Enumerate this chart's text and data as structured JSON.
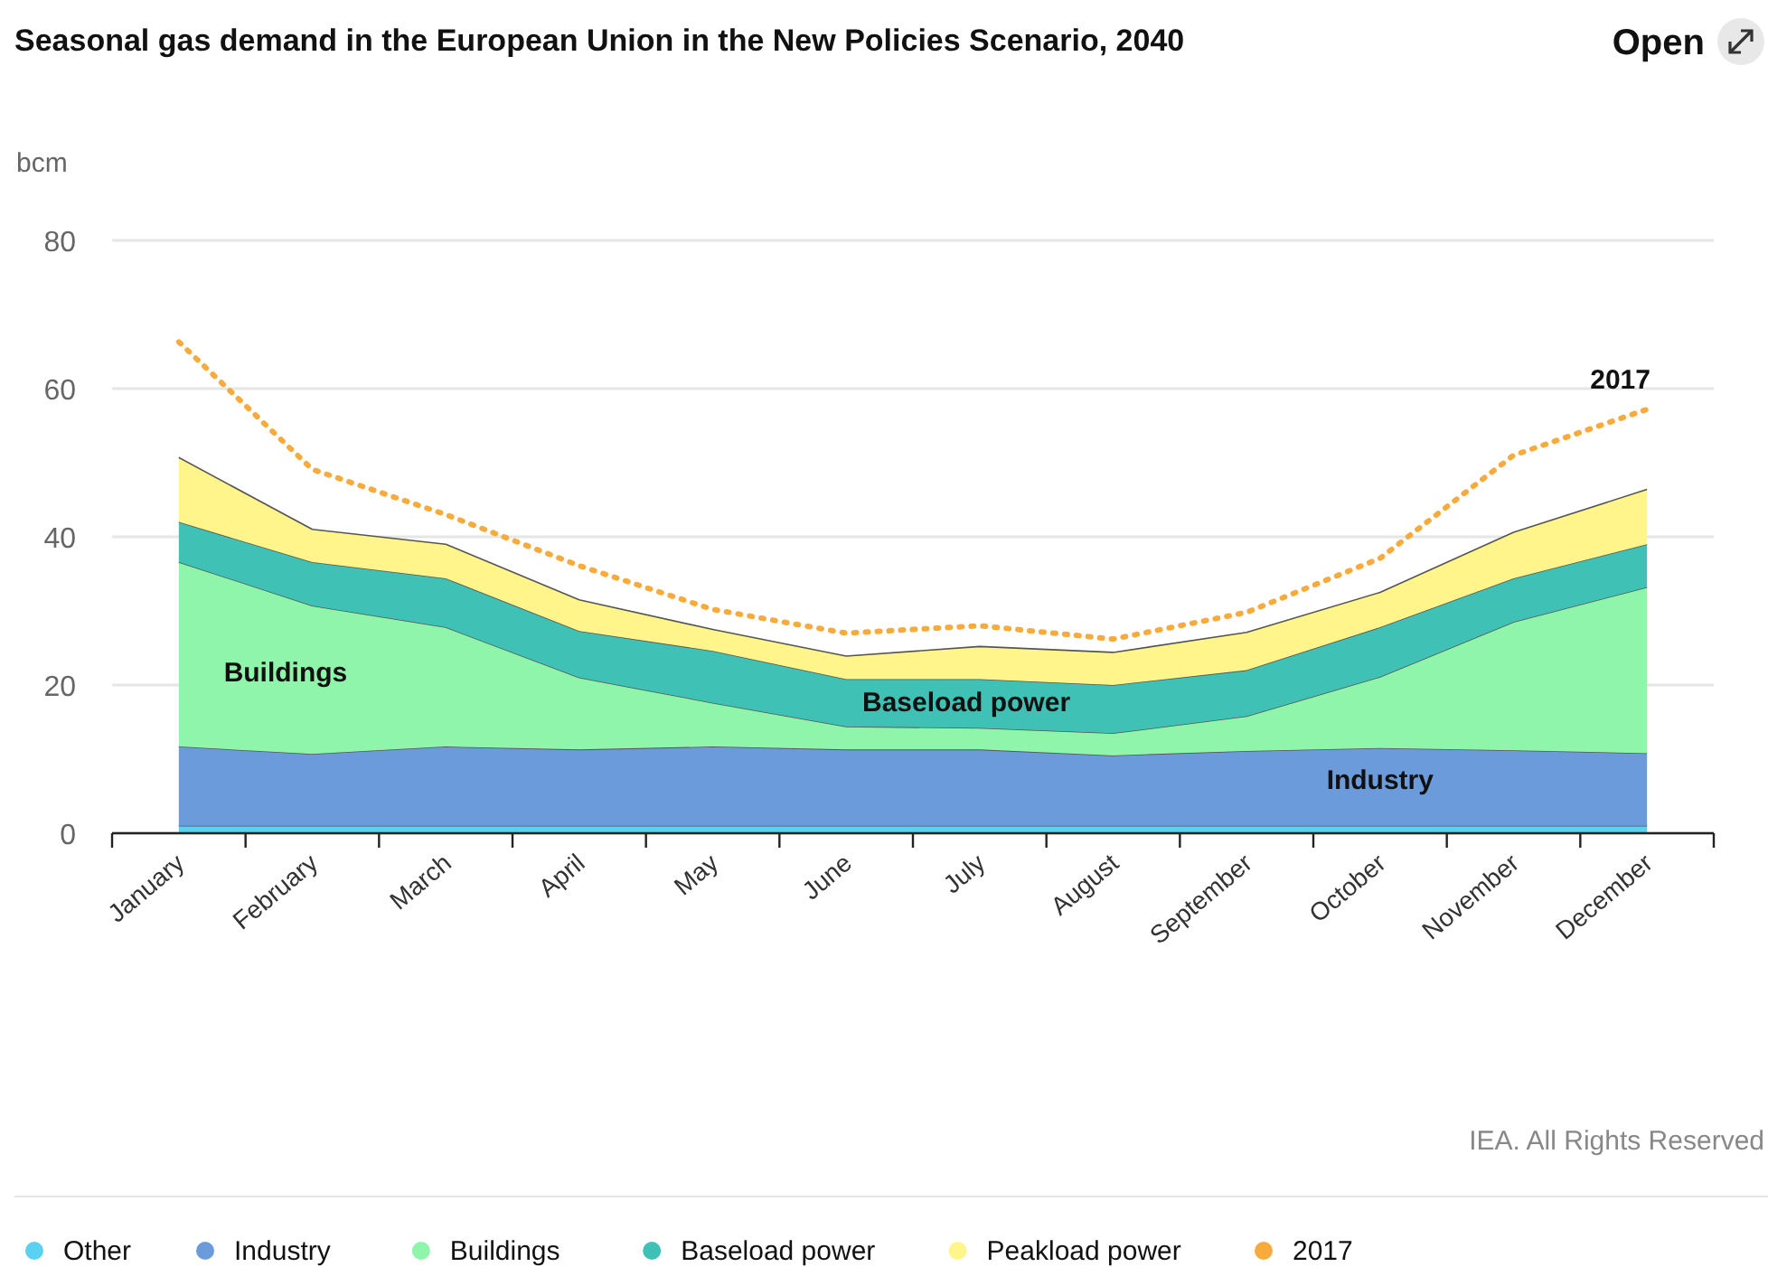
{
  "chart_data": {
    "type": "area",
    "stacked": true,
    "title": "Seasonal gas demand in the European Union in the New Policies Scenario, 2040",
    "ylabel": "bcm",
    "categories": [
      "January",
      "February",
      "March",
      "April",
      "May",
      "June",
      "July",
      "August",
      "September",
      "October",
      "November",
      "December"
    ],
    "series": [
      {
        "name": "Other",
        "color": "#5ad1f0",
        "values": [
          1,
          1,
          1,
          1,
          1,
          1,
          1,
          1,
          1,
          1,
          1,
          1
        ]
      },
      {
        "name": "Industry",
        "color": "#6b9bdb",
        "values": [
          10.7,
          9.7,
          10.7,
          10.3,
          10.7,
          10.3,
          10.3,
          9.5,
          10.1,
          10.5,
          10.2,
          9.8
        ]
      },
      {
        "name": "Buildings",
        "color": "#8ef5aa",
        "values": [
          24.9,
          20,
          16.1,
          9.7,
          5.9,
          3.1,
          2.9,
          3,
          4.7,
          9.6,
          17.3,
          22.4
        ]
      },
      {
        "name": "Baseload power",
        "color": "#3fc1b6",
        "values": [
          5.4,
          5.9,
          6.6,
          6.3,
          7,
          6.4,
          6.6,
          6.5,
          6.2,
          6.7,
          5.9,
          5.8
        ]
      },
      {
        "name": "Peakload power",
        "color": "#fff58a",
        "values": [
          8.7,
          4.4,
          4.6,
          4.2,
          2.9,
          3.1,
          4.4,
          4.4,
          5.1,
          4.7,
          6.2,
          7.4
        ]
      },
      {
        "name": "2017",
        "type": "line",
        "line_style": "dotted",
        "color": "#f7ab3d",
        "values": [
          66.3,
          49.1,
          43,
          36.1,
          30.2,
          27,
          28,
          26.2,
          29.8,
          37.1,
          51,
          57.2
        ]
      }
    ],
    "ylim": [
      0,
      80
    ],
    "yticks": [
      0,
      20,
      40,
      60,
      80
    ],
    "grid": "y",
    "legend": "bottom",
    "annotations": [
      "Open",
      "IEA. All Rights Reserved"
    ]
  }
}
